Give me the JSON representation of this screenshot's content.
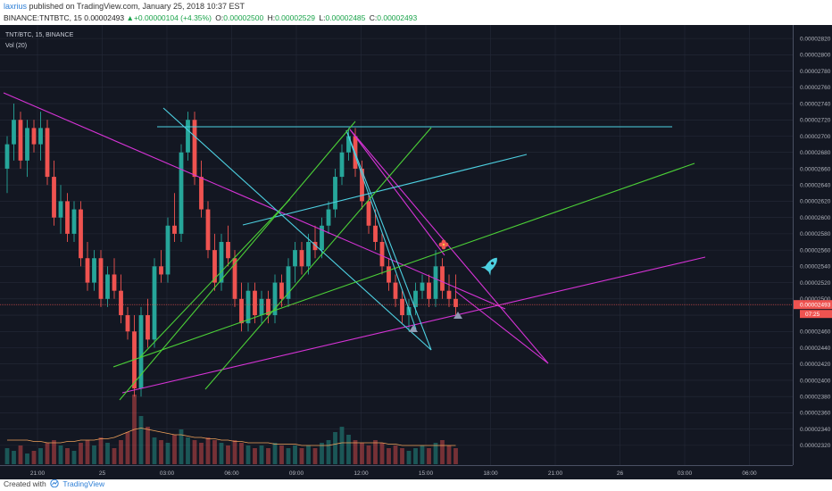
{
  "header": {
    "author": "laxrius",
    "published_text": "published on TradingView.com, January 25, 2018 10:37 EST",
    "symbol_line": "BINANCE:TNTBTC, 15",
    "price": "0.00002493",
    "change_arrow": "▲",
    "change": "+0.00000104 (+4.35%)",
    "o_label": "O:",
    "o": "0.00002500",
    "h_label": "H:",
    "h": "0.00002529",
    "l_label": "L:",
    "l": "0.00002485",
    "c_label": "C:",
    "c": "0.00002493"
  },
  "legend": {
    "pair": "TNT/BTC, 15, BINANCE",
    "volume": "Vol (20)"
  },
  "footer": {
    "created_with": "Created with",
    "brand": "TradingView"
  },
  "colors": {
    "background": "#131722",
    "grid": "#262b3a",
    "up_candle": "#26a69a",
    "down_candle": "#ef5350",
    "cyan_lines": "#4dd0e1",
    "green_lines": "#4cd137",
    "magenta_lines": "#d633d6",
    "volume_ma": "#f0a35b",
    "last_price": "#ef5350"
  },
  "icons": [
    "rocket-icon",
    "arrow-up-marker-icon",
    "flower-marker-icon",
    "tradingview-logo-icon"
  ],
  "chart_data": {
    "type": "candlestick",
    "title": "TNT/BTC, 15, BINANCE",
    "ylim": [
      2.31e-05,
      2.83e-05
    ],
    "y_ticks": [
      "0.00002820",
      "0.00002800",
      "0.00002780",
      "0.00002760",
      "0.00002740",
      "0.00002720",
      "0.00002700",
      "0.00002680",
      "0.00002660",
      "0.00002640",
      "0.00002620",
      "0.00002600",
      "0.00002580",
      "0.00002560",
      "0.00002540",
      "0.00002520",
      "0.00002500",
      "0.00002480",
      "0.00002460",
      "0.00002440",
      "0.00002420",
      "0.00002400",
      "0.00002380",
      "0.00002360",
      "0.00002340",
      "0.00002320"
    ],
    "x_ticks": [
      "21:00",
      "25",
      "03:00",
      "06:00",
      "09:00",
      "12:00",
      "15:00",
      "18:00",
      "21:00",
      "26",
      "03:00",
      "06:00"
    ],
    "last_price": 2.493e-05,
    "last_price_label": "0.00002493",
    "countdown_label": "07:25",
    "candles": [
      [
        2.66e-05,
        2.7e-05,
        2.63e-05,
        2.69e-05
      ],
      [
        2.69e-05,
        2.74e-05,
        2.67e-05,
        2.72e-05
      ],
      [
        2.72e-05,
        2.73e-05,
        2.66e-05,
        2.67e-05
      ],
      [
        2.67e-05,
        2.72e-05,
        2.65e-05,
        2.71e-05
      ],
      [
        2.71e-05,
        2.72e-05,
        2.68e-05,
        2.69e-05
      ],
      [
        2.69e-05,
        2.73e-05,
        2.67e-05,
        2.71e-05
      ],
      [
        2.71e-05,
        2.72e-05,
        2.64e-05,
        2.65e-05
      ],
      [
        2.65e-05,
        2.67e-05,
        2.59e-05,
        2.6e-05
      ],
      [
        2.6e-05,
        2.64e-05,
        2.58e-05,
        2.62e-05
      ],
      [
        2.62e-05,
        2.63e-05,
        2.57e-05,
        2.58e-05
      ],
      [
        2.58e-05,
        2.62e-05,
        2.57e-05,
        2.61e-05
      ],
      [
        2.61e-05,
        2.62e-05,
        2.54e-05,
        2.55e-05
      ],
      [
        2.55e-05,
        2.57e-05,
        2.51e-05,
        2.52e-05
      ],
      [
        2.52e-05,
        2.56e-05,
        2.51e-05,
        2.55e-05
      ],
      [
        2.55e-05,
        2.56e-05,
        2.49e-05,
        2.5e-05
      ],
      [
        2.5e-05,
        2.54e-05,
        2.49e-05,
        2.53e-05
      ],
      [
        2.53e-05,
        2.55e-05,
        2.5e-05,
        2.51e-05
      ],
      [
        2.51e-05,
        2.53e-05,
        2.47e-05,
        2.48e-05
      ],
      [
        2.48e-05,
        2.49e-05,
        2.45e-05,
        2.46e-05
      ],
      [
        2.46e-05,
        2.48e-05,
        2.38e-05,
        2.39e-05
      ],
      [
        2.39e-05,
        2.49e-05,
        2.38e-05,
        2.48e-05
      ],
      [
        2.48e-05,
        2.5e-05,
        2.44e-05,
        2.45e-05
      ],
      [
        2.45e-05,
        2.55e-05,
        2.44e-05,
        2.54e-05
      ],
      [
        2.54e-05,
        2.56e-05,
        2.52e-05,
        2.53e-05
      ],
      [
        2.53e-05,
        2.6e-05,
        2.52e-05,
        2.59e-05
      ],
      [
        2.59e-05,
        2.63e-05,
        2.57e-05,
        2.58e-05
      ],
      [
        2.58e-05,
        2.69e-05,
        2.57e-05,
        2.68e-05
      ],
      [
        2.68e-05,
        2.73e-05,
        2.67e-05,
        2.72e-05
      ],
      [
        2.72e-05,
        2.73e-05,
        2.64e-05,
        2.65e-05
      ],
      [
        2.65e-05,
        2.67e-05,
        2.6e-05,
        2.61e-05
      ],
      [
        2.61e-05,
        2.62e-05,
        2.55e-05,
        2.56e-05
      ],
      [
        2.56e-05,
        2.58e-05,
        2.51e-05,
        2.52e-05
      ],
      [
        2.52e-05,
        2.58e-05,
        2.51e-05,
        2.57e-05
      ],
      [
        2.57e-05,
        2.59e-05,
        2.54e-05,
        2.55e-05
      ],
      [
        2.55e-05,
        2.56e-05,
        2.49e-05,
        2.5e-05
      ],
      [
        2.5e-05,
        2.52e-05,
        2.46e-05,
        2.47e-05
      ],
      [
        2.47e-05,
        2.52e-05,
        2.46e-05,
        2.51e-05
      ],
      [
        2.51e-05,
        2.52e-05,
        2.47e-05,
        2.48e-05
      ],
      [
        2.48e-05,
        2.51e-05,
        2.47e-05,
        2.5e-05
      ],
      [
        2.5e-05,
        2.51e-05,
        2.47e-05,
        2.48e-05
      ],
      [
        2.48e-05,
        2.53e-05,
        2.47e-05,
        2.52e-05
      ],
      [
        2.52e-05,
        2.53e-05,
        2.49e-05,
        2.5e-05
      ],
      [
        2.5e-05,
        2.55e-05,
        2.49e-05,
        2.54e-05
      ],
      [
        2.54e-05,
        2.57e-05,
        2.52e-05,
        2.56e-05
      ],
      [
        2.56e-05,
        2.57e-05,
        2.53e-05,
        2.54e-05
      ],
      [
        2.54e-05,
        2.58e-05,
        2.53e-05,
        2.57e-05
      ],
      [
        2.57e-05,
        2.59e-05,
        2.55e-05,
        2.56e-05
      ],
      [
        2.56e-05,
        2.6e-05,
        2.55e-05,
        2.59e-05
      ],
      [
        2.59e-05,
        2.62e-05,
        2.58e-05,
        2.61e-05
      ],
      [
        2.61e-05,
        2.66e-05,
        2.6e-05,
        2.65e-05
      ],
      [
        2.65e-05,
        2.69e-05,
        2.64e-05,
        2.68e-05
      ],
      [
        2.68e-05,
        2.71e-05,
        2.67e-05,
        2.7e-05
      ],
      [
        2.7e-05,
        2.71e-05,
        2.65e-05,
        2.66e-05
      ],
      [
        2.66e-05,
        2.67e-05,
        2.61e-05,
        2.62e-05
      ],
      [
        2.62e-05,
        2.63e-05,
        2.58e-05,
        2.59e-05
      ],
      [
        2.59e-05,
        2.61e-05,
        2.56e-05,
        2.57e-05
      ],
      [
        2.57e-05,
        2.58e-05,
        2.53e-05,
        2.54e-05
      ],
      [
        2.54e-05,
        2.55e-05,
        2.51e-05,
        2.52e-05
      ],
      [
        2.52e-05,
        2.53e-05,
        2.49e-05,
        2.5e-05
      ],
      [
        2.5e-05,
        2.51e-05,
        2.47e-05,
        2.48e-05
      ],
      [
        2.48e-05,
        2.5e-05,
        2.46e-05,
        2.49e-05
      ],
      [
        2.49e-05,
        2.52e-05,
        2.48e-05,
        2.51e-05
      ],
      [
        2.51e-05,
        2.53e-05,
        2.5e-05,
        2.52e-05
      ],
      [
        2.52e-05,
        2.53e-05,
        2.49e-05,
        2.5e-05
      ],
      [
        2.5e-05,
        2.56e-05,
        2.49e-05,
        2.54e-05
      ],
      [
        2.54e-05,
        2.55e-05,
        2.5e-05,
        2.51e-05
      ],
      [
        2.51e-05,
        2.53e-05,
        2.49e-05,
        2.5e-05
      ],
      [
        2.5e-05,
        2.53e-05,
        2.48e-05,
        2.49e-05
      ]
    ],
    "volume": [
      6,
      5,
      7,
      4,
      5,
      6,
      8,
      9,
      7,
      6,
      5,
      8,
      9,
      7,
      10,
      8,
      6,
      9,
      12,
      26,
      18,
      14,
      10,
      9,
      8,
      11,
      13,
      10,
      9,
      8,
      10,
      9,
      8,
      7,
      9,
      8,
      7,
      6,
      7,
      6,
      8,
      7,
      6,
      7,
      6,
      7,
      6,
      8,
      9,
      12,
      14,
      11,
      9,
      8,
      7,
      9,
      8,
      6,
      7,
      6,
      5,
      6,
      7,
      6,
      8,
      9,
      7,
      6
    ],
    "volume_ma": [
      9,
      9,
      9,
      9,
      8.5,
      8.5,
      8,
      8,
      8,
      8.5,
      8.5,
      9,
      9,
      9,
      9.5,
      9.5,
      10,
      11,
      12,
      13,
      13.5,
      13,
      12.5,
      12,
      11.5,
      11,
      11,
      10.5,
      10,
      10,
      9.5,
      9.5,
      9,
      9,
      8.5,
      8.5,
      8,
      8,
      8,
      8,
      7.5,
      7.5,
      7.5,
      7.5,
      7,
      7,
      7,
      7,
      7,
      7.5,
      8,
      8,
      8,
      8,
      8,
      8,
      8,
      7.5,
      7.5,
      7,
      7,
      7,
      7,
      7,
      7,
      7,
      7,
      7
    ]
  }
}
